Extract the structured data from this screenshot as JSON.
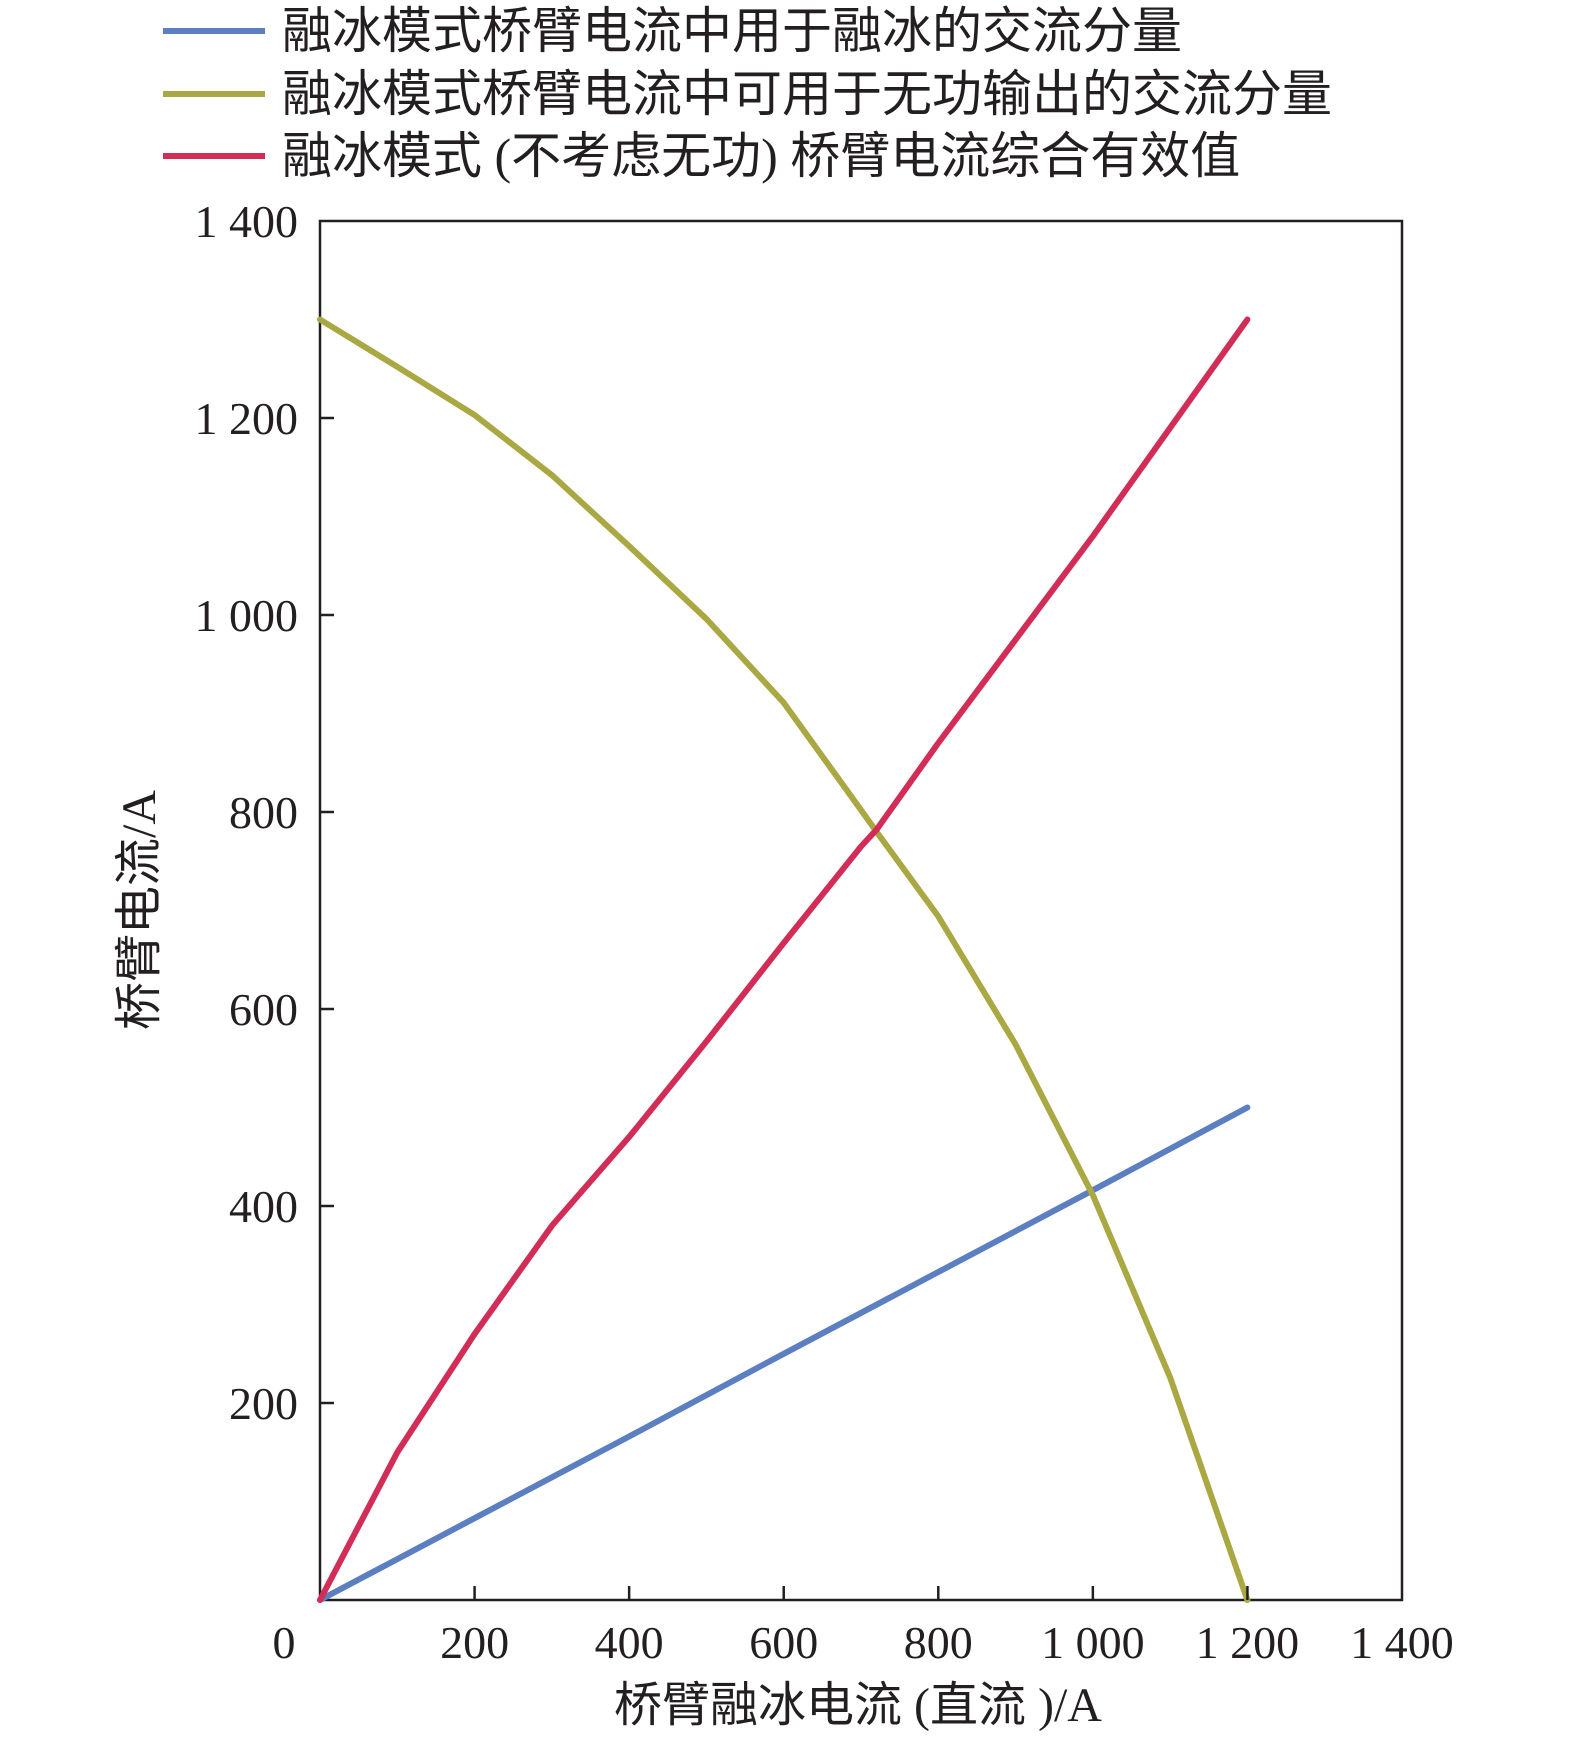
{
  "chart_data": {
    "type": "line",
    "title": "",
    "xlabel": "桥臂融冰电流 (直流 )/A",
    "ylabel": "桥臂电流/A",
    "xlim": [
      0,
      1400
    ],
    "ylim": [
      0,
      1400
    ],
    "x_ticks": [
      0,
      200,
      400,
      600,
      800,
      1000,
      1200,
      1400
    ],
    "x_tick_labels": [
      "0",
      "200",
      "400",
      "600",
      "800",
      "1 000",
      "1 200",
      "1 400"
    ],
    "y_ticks": [
      200,
      400,
      600,
      800,
      1000,
      1200,
      1400
    ],
    "y_tick_labels": [
      "200",
      "400",
      "600",
      "800",
      "1 000",
      "1 200",
      "1 400"
    ],
    "grid": false,
    "legend_position": "top",
    "series": [
      {
        "name": "融冰模式桥臂电流中用于融冰的交流分量",
        "color": "#5b7fc0",
        "x": [
          0,
          200,
          400,
          600,
          800,
          1000,
          1200
        ],
        "y": [
          0,
          83,
          166,
          250,
          333,
          416,
          500
        ]
      },
      {
        "name": "融冰模式桥臂电流中可用于无功输出的交流分量",
        "color": "#a9a842",
        "x": [
          0,
          100,
          200,
          300,
          400,
          500,
          600,
          700,
          720,
          800,
          900,
          1000,
          1100,
          1200
        ],
        "y": [
          1300,
          1252,
          1203,
          1142,
          1070,
          996,
          911,
          802,
          780,
          694,
          564,
          411,
          226,
          0
        ]
      },
      {
        "name": "融冰模式 (不考虑无功) 桥臂电流综合有效值",
        "color": "#d12d57",
        "x": [
          0,
          100,
          200,
          300,
          400,
          500,
          600,
          700,
          720,
          800,
          900,
          1000,
          1100,
          1200
        ],
        "y": [
          0,
          150,
          270,
          380,
          470,
          567,
          667,
          765,
          782,
          870,
          975,
          1080,
          1190,
          1300
        ]
      }
    ]
  }
}
